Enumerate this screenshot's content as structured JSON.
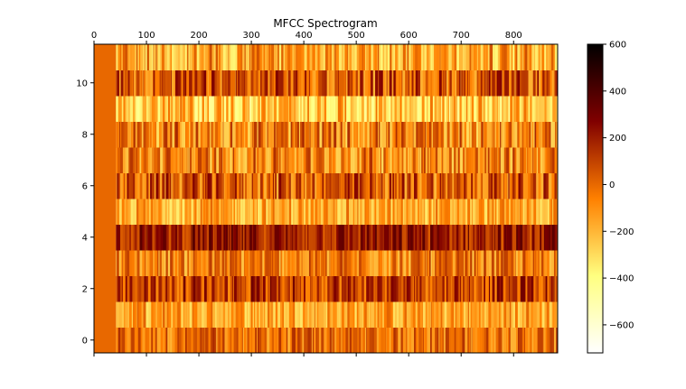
{
  "chart_data": {
    "type": "heatmap",
    "title": "MFCC Spectrogram",
    "xlabel": "",
    "ylabel": "",
    "x_range": [
      0,
      884
    ],
    "y_range": [
      -0.5,
      11.5
    ],
    "x_ticks": [
      "0",
      "100",
      "200",
      "300",
      "400",
      "500",
      "600",
      "700",
      "800"
    ],
    "y_ticks": [
      "0",
      "2",
      "4",
      "6",
      "8",
      "10"
    ],
    "rows": 12,
    "leading_constant_frames": 42,
    "colormap": "afmhot_r",
    "colorbar": {
      "range": [
        -720,
        600
      ],
      "ticks": [
        "600",
        "400",
        "200",
        "0",
        "−200",
        "−400",
        "−600"
      ]
    },
    "row_profiles": [
      {
        "coefficient": 0,
        "mean": -20,
        "variation": 110
      },
      {
        "coefficient": 1,
        "mean": -150,
        "variation": 110
      },
      {
        "coefficient": 2,
        "mean": 110,
        "variation": 130
      },
      {
        "coefficient": 3,
        "mean": -60,
        "variation": 120
      },
      {
        "coefficient": 4,
        "mean": 200,
        "variation": 110
      },
      {
        "coefficient": 5,
        "mean": -170,
        "variation": 110
      },
      {
        "coefficient": 6,
        "mean": 30,
        "variation": 150
      },
      {
        "coefficient": 7,
        "mean": -70,
        "variation": 140
      },
      {
        "coefficient": 8,
        "mean": -70,
        "variation": 150
      },
      {
        "coefficient": 9,
        "mean": -240,
        "variation": 140
      },
      {
        "coefficient": 10,
        "mean": 40,
        "variation": 150
      },
      {
        "coefficient": 11,
        "mean": -150,
        "variation": 140
      }
    ]
  }
}
